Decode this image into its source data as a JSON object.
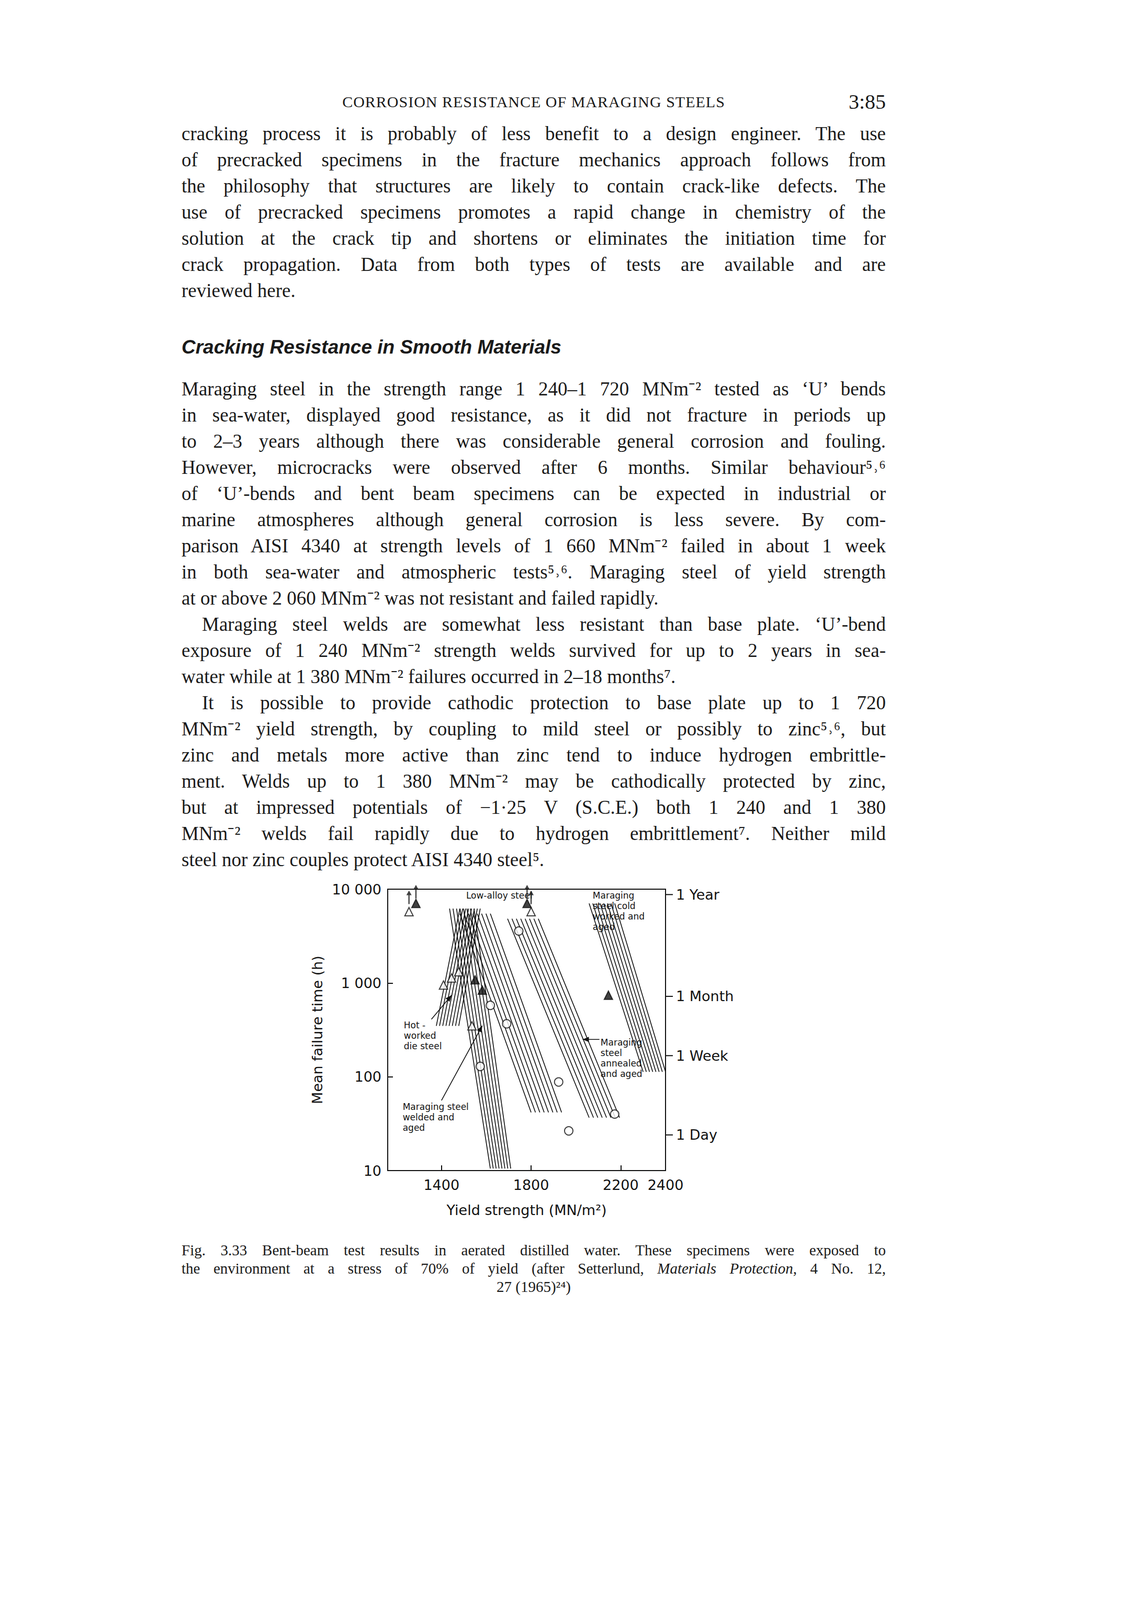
{
  "header": {
    "title": "CORROSION RESISTANCE OF MARAGING STEELS",
    "page": "3:85"
  },
  "sections": [
    {
      "paragraphs": [
        [
          "cracking process it is probably of less benefit to a design engineer. The use",
          "of precracked specimens in the fracture mechanics approach follows from",
          "the philosophy that structures are likely to contain crack-like defects. The",
          "use of precracked specimens promotes a rapid change in chemistry of the",
          "solution at the crack tip and shortens or eliminates the initiation time for",
          "crack propagation. Data from both types of tests are available and are",
          "reviewed here."
        ]
      ]
    },
    {
      "heading": "Cracking Resistance in Smooth Materials",
      "paragraphs": [
        [
          "Maraging steel in the strength range 1 240–1 720 MNm⁻² tested as ‘U’ bends",
          "in sea-water, displayed good resistance, as it did not fracture in periods up",
          "to 2–3 years although there was considerable general corrosion and fouling.",
          "However, microcracks were observed after 6 months. Similar behaviour⁵˒⁶",
          "of ‘U’-bends and bent beam specimens can be expected in industrial or",
          "marine atmospheres although general corrosion is less severe. By com-",
          "parison AISI 4340 at strength levels of 1 660 MNm⁻² failed in about 1 week",
          "in both sea-water and atmospheric tests⁵˒⁶. Maraging steel of yield strength",
          "at or above 2 060 MNm⁻² was not resistant and failed rapidly."
        ],
        [
          "Maraging steel welds are somewhat less resistant than base plate. ‘U’-bend",
          "exposure of 1 240 MNm⁻² strength welds survived for up to 2 years in sea-",
          "water while at 1 380 MNm⁻² failures occurred in 2–18 months⁷."
        ],
        [
          "It is possible to provide cathodic protection to base plate up to 1 720",
          "MNm⁻² yield strength, by coupling to mild steel or possibly to zinc⁵˒⁶, but",
          "zinc and metals more active than zinc tend to induce hydrogen embrittle-",
          "ment. Welds up to 1 380 MNm⁻² may be cathodically protected by zinc,",
          "but at impressed potentials of −1·25 V (S.C.E.) both 1 240 and 1 380",
          "MNm⁻² welds fail rapidly due to hydrogen embrittlement⁷. Neither mild",
          "steel nor zinc couples protect AISI 4340 steel⁵."
        ]
      ]
    }
  ],
  "chart_data": {
    "type": "scatter",
    "x_label": "Yield strength (MN/m²)",
    "y_label": "Mean failure time (h)",
    "log": "y",
    "grid": false,
    "color": "#111111",
    "xlim": [
      1160,
      2400
    ],
    "xticks": [
      1400,
      1800,
      2200,
      2400
    ],
    "ylim": [
      10,
      10000
    ],
    "yticks": [
      10,
      100,
      {
        "value": 1000,
        "label": "1 000"
      },
      {
        "value": 10000,
        "label": "10 000"
      }
    ],
    "y2lim": [
      10,
      10000
    ],
    "y2ticks": [
      {
        "value": 24,
        "label": "1 Day"
      },
      {
        "value": 168,
        "label": "1 Week"
      },
      {
        "value": 720,
        "label": "1 Month"
      },
      {
        "value": 8760,
        "label": "1 Year"
      }
    ],
    "bands": [
      {
        "label": [
          "Low-alloy steel"
        ],
        "label_at": [
          1510,
          9500
        ],
        "polygon": [
          [
            1482,
            5490
          ],
          [
            1618,
            5490
          ],
          [
            1936,
            41.7
          ],
          [
            1800,
            41.7
          ]
        ]
      },
      {
        "label": [
          "Maraging",
          "steel cold",
          "worked and",
          "aged"
        ],
        "label_at": [
          2075,
          9500
        ],
        "polygon": [
          [
            2059,
            7050
          ],
          [
            2173,
            7050
          ],
          [
            2400,
            113
          ],
          [
            2300,
            113
          ]
        ]
      },
      {
        "label": [
          "Hot -",
          "worked",
          "die steel"
        ],
        "label_at": [
          1232,
          396
        ],
        "arrow": {
          "from": [
            1355,
            410
          ],
          "to": [
            1445,
            740
          ]
        },
        "polygon": [
          [
            1482,
            6210
          ],
          [
            1573,
            6210
          ],
          [
            1477,
            349
          ],
          [
            1377,
            349
          ]
        ]
      },
      {
        "label": [
          "Maraging",
          "steel",
          "annealed",
          "and aged"
        ],
        "label_at": [
          2110,
          259
        ],
        "arrow": {
          "from": [
            2105,
            250
          ],
          "to": [
            2030,
            250
          ]
        },
        "polygon": [
          [
            1695,
            4840
          ],
          [
            1832,
            4840
          ],
          [
            2195,
            36.7
          ],
          [
            2059,
            36.7
          ]
        ]
      },
      {
        "label": [
          "Maraging steel",
          "welded and",
          "aged"
        ],
        "label_at": [
          1227,
          53.5
        ],
        "arrow": {
          "from": [
            1400,
            56
          ],
          "to": [
            1582,
            350
          ]
        },
        "polygon": [
          [
            1436,
            6210
          ],
          [
            1545,
            6210
          ],
          [
            1709,
            10.5
          ],
          [
            1618,
            10.5
          ]
        ]
      }
    ],
    "series": [
      {
        "marker": "circle_open",
        "values": [
          [
            1745,
            3580
          ],
          [
            1618,
            577
          ],
          [
            1691,
            367
          ],
          [
            1573,
            129
          ],
          [
            1923,
            88
          ],
          [
            1968,
            26.5
          ],
          [
            2173,
            40
          ]
        ]
      },
      {
        "marker": "triangle_open",
        "values": [
          [
            1409,
            950
          ],
          [
            1445,
            1130
          ],
          [
            1477,
            1320
          ],
          [
            1536,
            349
          ],
          [
            1255,
            5760
          ],
          [
            1800,
            5760
          ]
        ]
      },
      {
        "marker": "triangle_filled",
        "values": [
          [
            1550,
            1080
          ],
          [
            1582,
            840
          ],
          [
            2145,
            740
          ],
          [
            1286,
            7050
          ],
          [
            1782,
            7050
          ]
        ]
      },
      {
        "marker": "arrow_up",
        "values": [
          [
            1255,
            8200
          ],
          [
            1286,
            9400
          ],
          [
            1800,
            8200
          ],
          [
            1782,
            9400
          ]
        ]
      }
    ]
  },
  "caption": {
    "lines": [
      "Fig. 3.33  Bent-beam test results in aerated distilled water. These specimens were exposed to",
      "the environment at a stress of 70% of yield (after Setterlund, Materials Protection, 4 No. 12,",
      "27 (1965)²⁴)"
    ],
    "italic": [
      "Materials Protection"
    ]
  }
}
